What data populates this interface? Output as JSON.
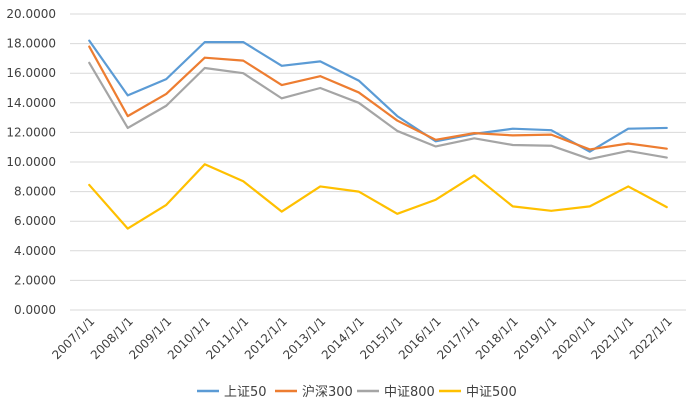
{
  "chart_data": {
    "type": "line",
    "title": "",
    "xlabel": "",
    "ylabel": "",
    "ylim": [
      0,
      20
    ],
    "y_ticks": [
      "0.0000",
      "2.0000",
      "4.0000",
      "6.0000",
      "8.0000",
      "10.0000",
      "12.0000",
      "14.0000",
      "16.0000",
      "18.0000",
      "20.0000"
    ],
    "grid": true,
    "legend_position": "bottom",
    "categories": [
      "2007/1/1",
      "2008/1/1",
      "2009/1/1",
      "2010/1/1",
      "2011/1/1",
      "2012/1/1",
      "2013/1/1",
      "2014/1/1",
      "2015/1/1",
      "2016/1/1",
      "2017/1/1",
      "2018/1/1",
      "2019/1/1",
      "2020/1/1",
      "2021/1/1",
      "2022/1/1"
    ],
    "series": [
      {
        "name": "上证50",
        "color": "#5b9bd5",
        "values": [
          18.2,
          14.5,
          15.6,
          18.1,
          18.1,
          16.5,
          16.8,
          15.5,
          13.1,
          11.4,
          11.9,
          12.25,
          12.15,
          10.7,
          12.25,
          12.3
        ]
      },
      {
        "name": "沪深300",
        "color": "#ed7d31",
        "values": [
          17.8,
          13.1,
          14.6,
          17.05,
          16.85,
          15.2,
          15.8,
          14.7,
          12.8,
          11.5,
          11.95,
          11.8,
          11.85,
          10.85,
          11.25,
          10.9
        ]
      },
      {
        "name": "中证800",
        "color": "#a5a5a5",
        "values": [
          16.7,
          12.3,
          13.8,
          16.35,
          16.0,
          14.3,
          15.0,
          14.0,
          12.1,
          11.05,
          11.6,
          11.15,
          11.1,
          10.2,
          10.75,
          10.3
        ]
      },
      {
        "name": "中证500",
        "color": "#ffc000",
        "values": [
          8.45,
          5.5,
          7.1,
          9.85,
          8.7,
          6.65,
          8.35,
          8.0,
          6.5,
          7.45,
          9.1,
          7.0,
          6.7,
          7.0,
          8.35,
          6.95
        ]
      }
    ]
  }
}
